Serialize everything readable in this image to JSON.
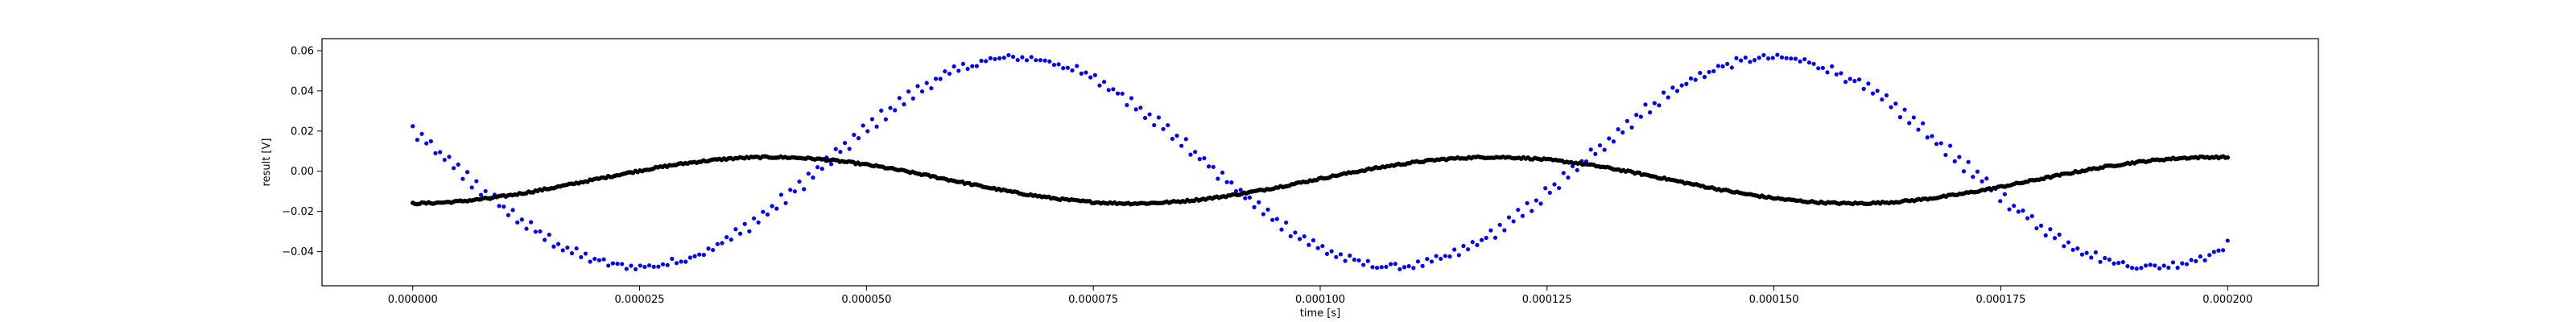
{
  "chart_data": {
    "type": "scatter",
    "title": "",
    "xlabel": "time [s]",
    "ylabel": "result [V]",
    "xlim": [
      -1e-05,
      0.00021
    ],
    "ylim": [
      -0.057,
      0.066
    ],
    "grid": false,
    "legend": "none",
    "x_ticks": [
      0,
      2.5e-05,
      5e-05,
      7.5e-05,
      0.0001,
      0.000125,
      0.00015,
      0.000175,
      0.0002
    ],
    "x_tick_labels": [
      "0.000000",
      "0.000025",
      "0.000050",
      "0.000075",
      "0.000100",
      "0.000125",
      "0.000150",
      "0.000175",
      "0.000200"
    ],
    "y_ticks": [
      -0.04,
      -0.02,
      0.0,
      0.02,
      0.04,
      0.06
    ],
    "y_tick_labels": [
      "−0.04",
      "−0.02",
      "0.00",
      "0.02",
      "0.04",
      "0.06"
    ],
    "series": [
      {
        "color": "#0000ff",
        "description_points": "sinusoid, two interleaved bands of points",
        "x_start": 0,
        "x_end": 0.0002,
        "n_points": 400,
        "amplitude": 0.052,
        "offset": 0.0045,
        "period": 8.33e-05,
        "peak_x": 6.65e-05,
        "band_spread": 0.004
      },
      {
        "color": "#000000",
        "x_start": 0,
        "x_end": 0.0002,
        "n_points": 800,
        "amplitude": 0.0115,
        "offset": -0.0045,
        "period": 7.95e-05,
        "peak_x": 0.000119
      }
    ]
  }
}
